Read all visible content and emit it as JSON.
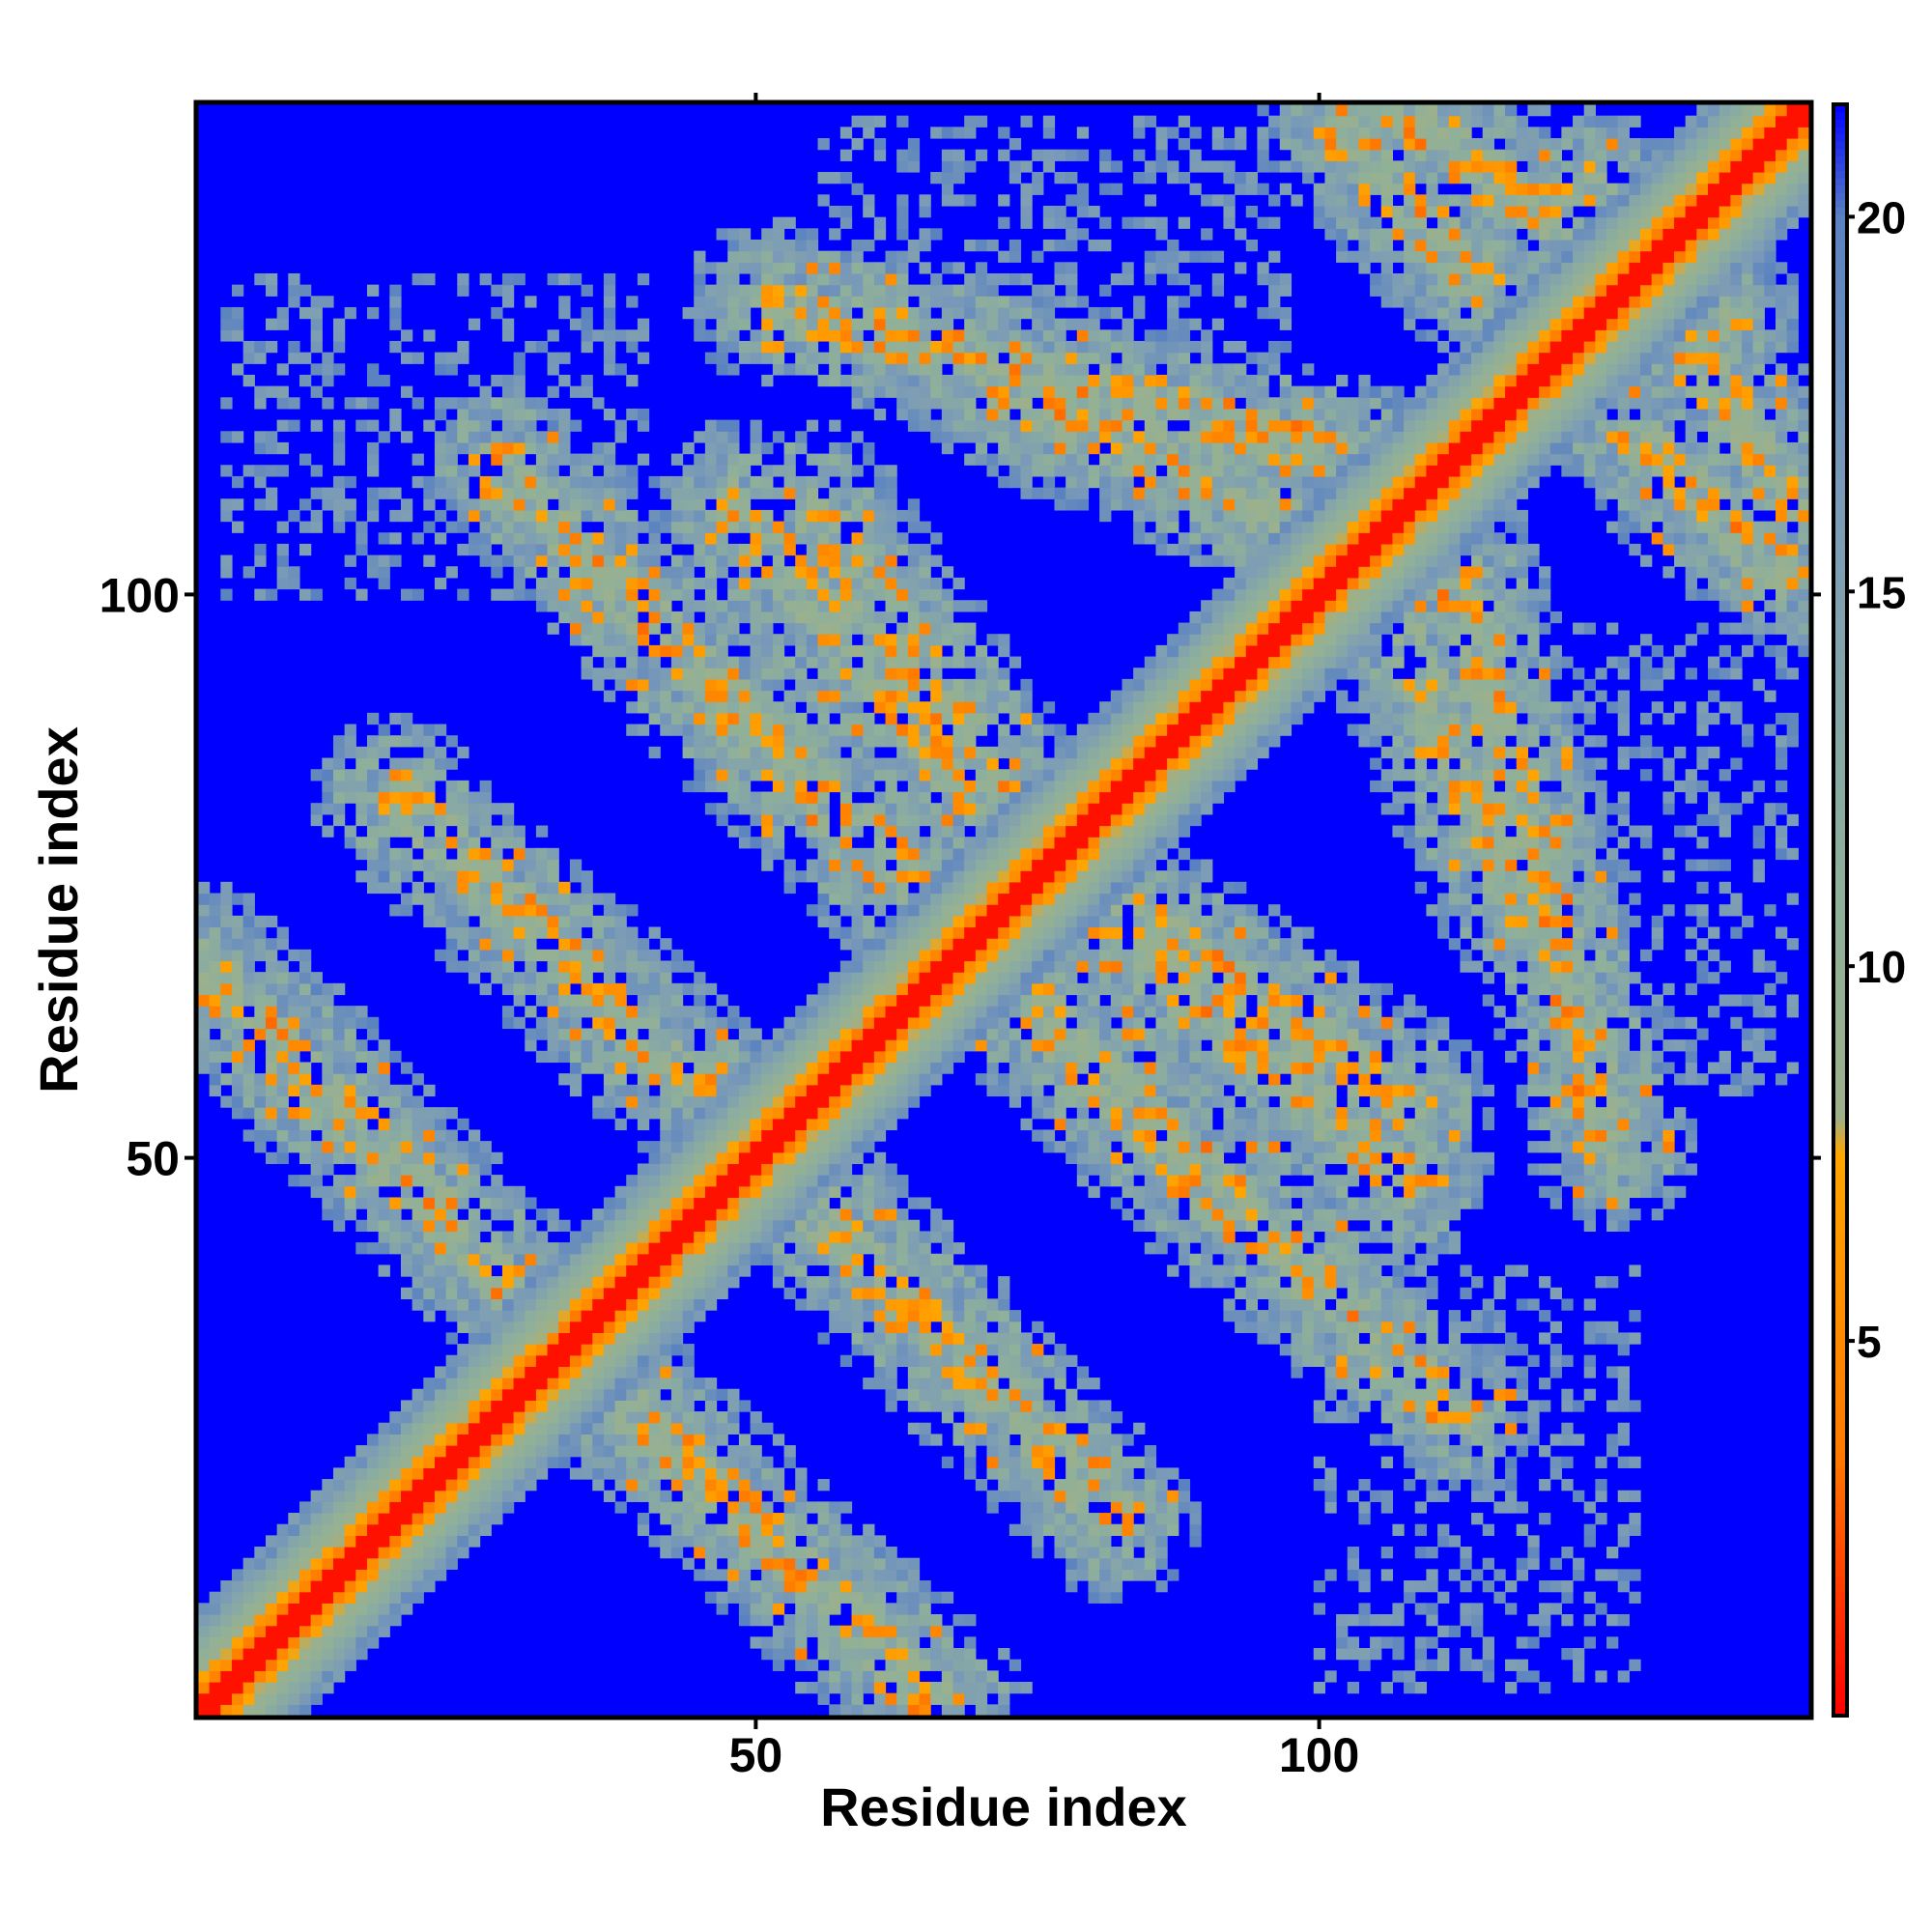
{
  "chart_data": {
    "type": "heatmap",
    "title": "",
    "xlabel": "Residue index",
    "ylabel": "Residue index",
    "n_residues": 143,
    "xlim": [
      1,
      143
    ],
    "ylim": [
      1,
      143
    ],
    "x_ticks": [
      50,
      100
    ],
    "y_ticks": [
      50,
      100
    ],
    "colorbar": {
      "ticks": [
        5,
        10,
        15,
        20
      ],
      "range": [
        0,
        21.5
      ],
      "stops": [
        {
          "value": 0.0,
          "color": "#ff0000"
        },
        {
          "value": 3.5,
          "color": "#ff7a00"
        },
        {
          "value": 7.5,
          "color": "#ffa500"
        },
        {
          "value": 8.0,
          "color": "#9cb08c"
        },
        {
          "value": 11.0,
          "color": "#8fb09a"
        },
        {
          "value": 16.0,
          "color": "#7c9cb6"
        },
        {
          "value": 20.0,
          "color": "#5a82c0"
        },
        {
          "value": 21.5,
          "color": "#0000ff"
        }
      ]
    },
    "background_color": "#0000ff",
    "diagonal": {
      "from": 1,
      "to": 143,
      "value": 0
    },
    "contact_bands": [
      {
        "name": "band-a",
        "from": [
          1,
          67
        ],
        "to": [
          38,
          28
        ]
      },
      {
        "name": "band-b",
        "from": [
          18,
          82
        ],
        "to": [
          57,
          44
        ]
      },
      {
        "name": "band-c",
        "from": [
          45,
          92
        ],
        "to": [
          112,
          27
        ]
      },
      {
        "name": "band-d",
        "from": [
          48,
          108
        ],
        "to": [
          71,
          80
        ]
      },
      {
        "name": "band-e",
        "from": [
          51,
          126
        ],
        "to": [
          103,
          112
        ]
      },
      {
        "name": "band-f",
        "from": [
          74,
          78
        ],
        "to": [
          108,
          55
        ]
      },
      {
        "name": "band-g",
        "from": [
          103,
          106
        ],
        "to": [
          118,
          72
        ]
      },
      {
        "name": "band-h",
        "from": [
          102,
          141
        ],
        "to": [
          114,
          128
        ]
      },
      {
        "name": "band-i",
        "from": [
          124,
          136
        ],
        "to": [
          142,
          108
        ]
      }
    ],
    "sparse_regions": [
      {
        "name": "upper-left",
        "x": [
          3,
          40
        ],
        "y": [
          100,
          125
        ]
      },
      {
        "name": "upper-middle",
        "x": [
          56,
          97
        ],
        "y": [
          128,
          142
        ]
      },
      {
        "name": "lower-right",
        "x": [
          103,
          128
        ],
        "y": [
          4,
          40
        ]
      },
      {
        "name": "mid-right",
        "x": [
          118,
          140
        ],
        "y": [
          58,
          97
        ]
      }
    ]
  }
}
